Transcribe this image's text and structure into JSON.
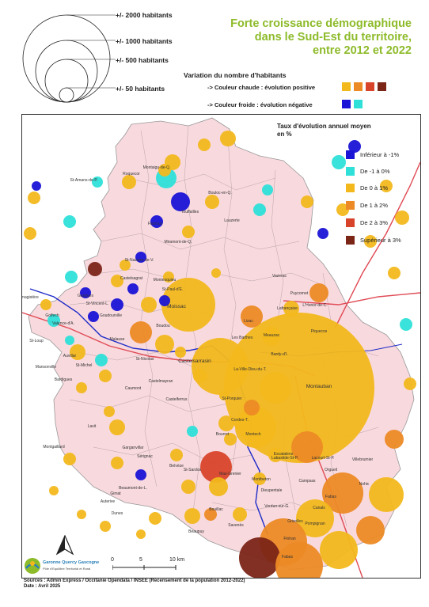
{
  "title": {
    "line1": "Forte croissance démographique",
    "line2": "dans le Sud-Est du territoire,",
    "line3": "entre 2012 et 2022"
  },
  "size_legend": [
    "+/- 2000 habitants",
    "+/- 1000 habitants",
    "+/- 500 habitants",
    "+/- 50 habitants"
  ],
  "variation": {
    "heading": "Variation du nombre d'habitants",
    "warm": "-> Couleur chaude : évolution positive",
    "cold": "-> Couleur froide : évolution négative",
    "warm_colors": [
      "#f2b81c",
      "#ec8a25",
      "#d8442a",
      "#7b2517"
    ],
    "cold_colors": [
      "#1a14d6",
      "#2ee0d8"
    ]
  },
  "rate_legend": {
    "title_line1": "Taux d'évolution annuel  moyen",
    "title_line2": "en %",
    "classes": [
      {
        "label": "Inférieur à -1%",
        "color": "#1a14d6"
      },
      {
        "label": "De -1 à 0%",
        "color": "#2ee0d8"
      },
      {
        "label": "De 0 à 1%",
        "color": "#f2b81c"
      },
      {
        "label": "De 1 à 2%",
        "color": "#ec8a25"
      },
      {
        "label": "De 2 à 3%",
        "color": "#d8442a"
      },
      {
        "label": "Supérieur à 3%",
        "color": "#7b2517"
      }
    ]
  },
  "places": [
    "Montaigu-de-Q.",
    "Roquecor",
    "St-Amans-de-P.",
    "Bouloc-en-Q.",
    "Touffailles",
    "Lauzerte",
    "Fauroux",
    "Miramont-de-Q.",
    "St-Nazaire-de-V.",
    "Castelsagrat",
    "Montesquieu",
    "St-Paul-d'E.",
    "Moissac",
    "Vazerac",
    "Puycornet",
    "L'Honor-de-C.",
    "Lafrançaise",
    "Piquecos",
    "Lizac",
    "Meauzac",
    "Les Barthes",
    "Bardy-d'I.",
    "La-Ville-Dieu-du-T.",
    "Montauban",
    "Castelsarrasin",
    "Lamagistère",
    "Golfech",
    "Valence-d'A.",
    "Goudourville",
    "St-Vincent-L.",
    "Gasques",
    "Malause",
    "Boudou",
    "St-Loup",
    "Auvillar",
    "St-Michel",
    "St-Nicolas",
    "Castelmayran",
    "Caumont",
    "Bardigues",
    "Mansonville",
    "Castelferrus",
    "St-Porquier",
    "Cordes-T.",
    "Bourret",
    "Montech",
    "Lavit",
    "Montgaillard",
    "Sérignac",
    "Belvèze",
    "St-Sardos",
    "Mas-Grenier",
    "Montbeton",
    "Lacourt-St-P.",
    "Villebrumier",
    "Orgueil",
    "Nohic",
    "Campsas",
    "Fabas",
    "Canals",
    "Dieupentale",
    "Verdun-sur-G.",
    "Grisolles",
    "Pompignan",
    "Savenès",
    "Bouillac",
    "Beaumont-de-L.",
    "Gimat",
    "Auterive",
    "Beaupuy",
    "Escatalens",
    "Labastide-St-P.",
    "Finhan",
    "Fabas",
    "Garganvillar",
    "Dunes",
    "Goas"
  ],
  "scale": {
    "start": "0",
    "mid": "5",
    "end": "10 km"
  },
  "logo": {
    "name": "Garonne Quercy Gascogne",
    "tagline": "Pôle d'Equilibre Territorial et Rural"
  },
  "source": {
    "line1": "Sources : Admin Express / Occitanie Opendata / INSEE (Recensement de la population 2012-2022)",
    "line2": "Date : Avril 2025"
  }
}
